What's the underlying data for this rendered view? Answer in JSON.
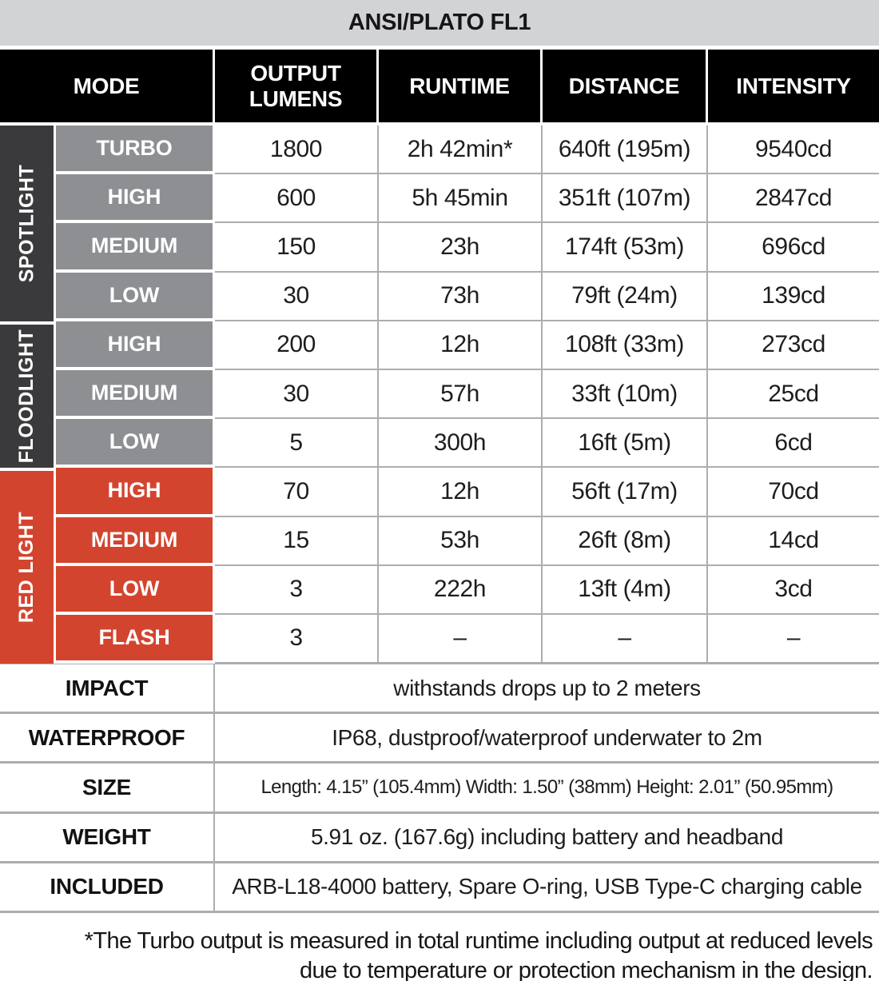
{
  "title": "ANSI/PLATO FL1",
  "columns": [
    "MODE",
    "OUTPUT LUMENS",
    "RUNTIME",
    "DISTANCE",
    "INTENSITY"
  ],
  "groups": [
    {
      "name": "SPOTLIGHT",
      "label_color": "#3a3a3c",
      "mode_color": "#8d8f92",
      "rows": [
        {
          "mode": "TURBO",
          "lumens": "1800",
          "runtime": "2h 42min*",
          "distance": "640ft (195m)",
          "intensity": "9540cd"
        },
        {
          "mode": "HIGH",
          "lumens": "600",
          "runtime": "5h 45min",
          "distance": "351ft (107m)",
          "intensity": "2847cd"
        },
        {
          "mode": "MEDIUM",
          "lumens": "150",
          "runtime": "23h",
          "distance": "174ft (53m)",
          "intensity": "696cd"
        },
        {
          "mode": "LOW",
          "lumens": "30",
          "runtime": "73h",
          "distance": "79ft (24m)",
          "intensity": "139cd"
        }
      ]
    },
    {
      "name": "FLOODLIGHT",
      "label_color": "#3a3a3c",
      "mode_color": "#8d8f92",
      "rows": [
        {
          "mode": "HIGH",
          "lumens": "200",
          "runtime": "12h",
          "distance": "108ft (33m)",
          "intensity": "273cd"
        },
        {
          "mode": "MEDIUM",
          "lumens": "30",
          "runtime": "57h",
          "distance": "33ft (10m)",
          "intensity": "25cd"
        },
        {
          "mode": "LOW",
          "lumens": "5",
          "runtime": "300h",
          "distance": "16ft (5m)",
          "intensity": "6cd"
        }
      ]
    },
    {
      "name": "RED LIGHT",
      "label_color": "#d3442f",
      "mode_color": "#d3442f",
      "rows": [
        {
          "mode": "HIGH",
          "lumens": "70",
          "runtime": "12h",
          "distance": "56ft (17m)",
          "intensity": "70cd"
        },
        {
          "mode": "MEDIUM",
          "lumens": "15",
          "runtime": "53h",
          "distance": "26ft (8m)",
          "intensity": "14cd"
        },
        {
          "mode": "LOW",
          "lumens": "3",
          "runtime": "222h",
          "distance": "13ft (4m)",
          "intensity": "3cd"
        },
        {
          "mode": "FLASH",
          "lumens": "3",
          "runtime": "–",
          "distance": "–",
          "intensity": "–"
        }
      ]
    }
  ],
  "specs": [
    {
      "label": "IMPACT",
      "value": "withstands drops up to 2 meters"
    },
    {
      "label": "WATERPROOF",
      "value": "IP68, dustproof/waterproof underwater to 2m"
    },
    {
      "label": "SIZE",
      "value": "Length: 4.15” (105.4mm) Width: 1.50” (38mm) Height: 2.01” (50.95mm)"
    },
    {
      "label": "WEIGHT",
      "value": "5.91 oz. (167.6g) including battery and headband"
    },
    {
      "label": "INCLUDED",
      "value": "ARB-L18-4000 battery, Spare O-ring, USB Type-C charging cable"
    }
  ],
  "footnote": {
    "line1": "*The Turbo output is measured in total runtime including output at reduced levels",
    "line2": "due to temperature or protection mechanism in the design."
  },
  "colors": {
    "title_bar_bg": "#d2d3d5",
    "header_bg": "#000000",
    "group_dark": "#3a3a3c",
    "mode_gray": "#8d8f92",
    "red": "#d3442f",
    "grid_line": "#abadb0"
  }
}
